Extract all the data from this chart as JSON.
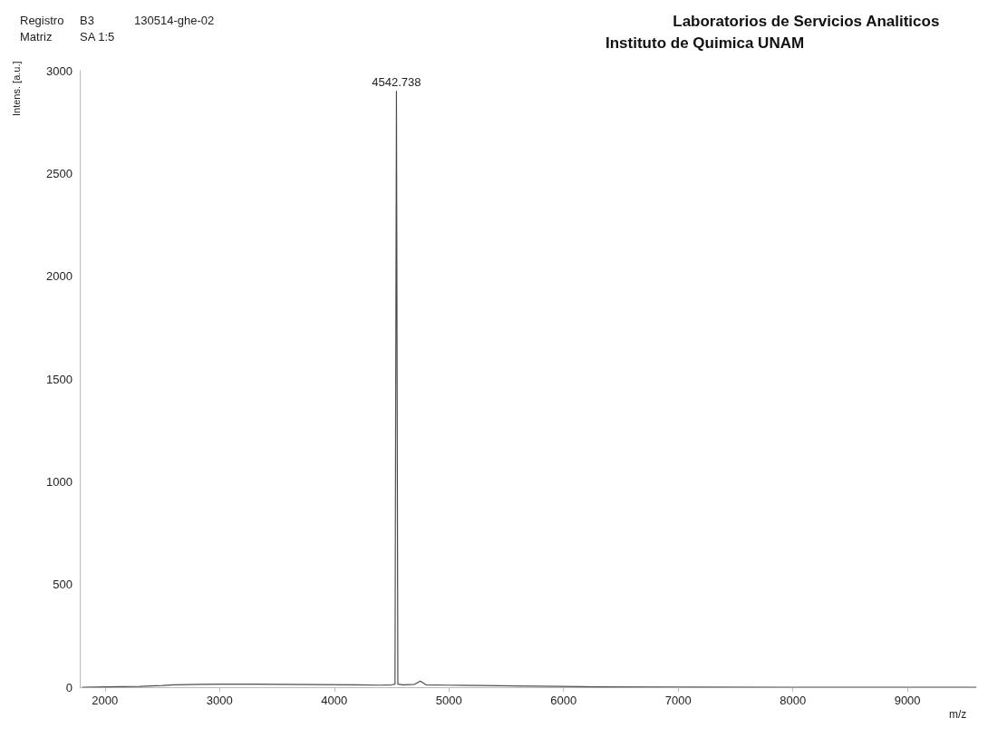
{
  "chart_data": {
    "type": "line",
    "title": "Laboratorios de Servicios Analiticos",
    "subtitle": "Instituto de Quimica UNAM",
    "xlabel": "m/z",
    "ylabel": "Intens. [a.u.]",
    "annotations": [
      "Registro",
      "B3",
      "130514-ghe-02",
      "Matriz",
      "SA 1:5",
      {
        "text": "4542.738",
        "x": 4542.738,
        "y": 2900
      }
    ],
    "x": [
      1800,
      2000,
      2300,
      2500,
      2600,
      2800,
      3000,
      3300,
      3600,
      3900,
      4200,
      4400,
      4500,
      4530,
      4542.738,
      4555,
      4600,
      4700,
      4750,
      4800,
      5000,
      5300,
      5600,
      6000,
      6300,
      7000,
      8000,
      9000,
      9600
    ],
    "series": [
      {
        "color": "#4d4d4d",
        "values": [
          0,
          2,
          4,
          8,
          12,
          14,
          15,
          15,
          14,
          13,
          12,
          10,
          12,
          15,
          2900,
          15,
          12,
          14,
          30,
          12,
          10,
          8,
          6,
          4,
          2,
          1,
          0,
          0,
          0
        ]
      }
    ],
    "xlim": [
      1780,
      9600
    ],
    "xticks": [
      2000,
      3000,
      4000,
      5000,
      6000,
      7000,
      8000,
      9000
    ],
    "ylim": [
      0,
      3000
    ],
    "yticks": [
      0,
      500,
      1000,
      1500,
      2000,
      2500,
      3000
    ],
    "grid": false,
    "marker": "none",
    "line_style": "solid"
  }
}
